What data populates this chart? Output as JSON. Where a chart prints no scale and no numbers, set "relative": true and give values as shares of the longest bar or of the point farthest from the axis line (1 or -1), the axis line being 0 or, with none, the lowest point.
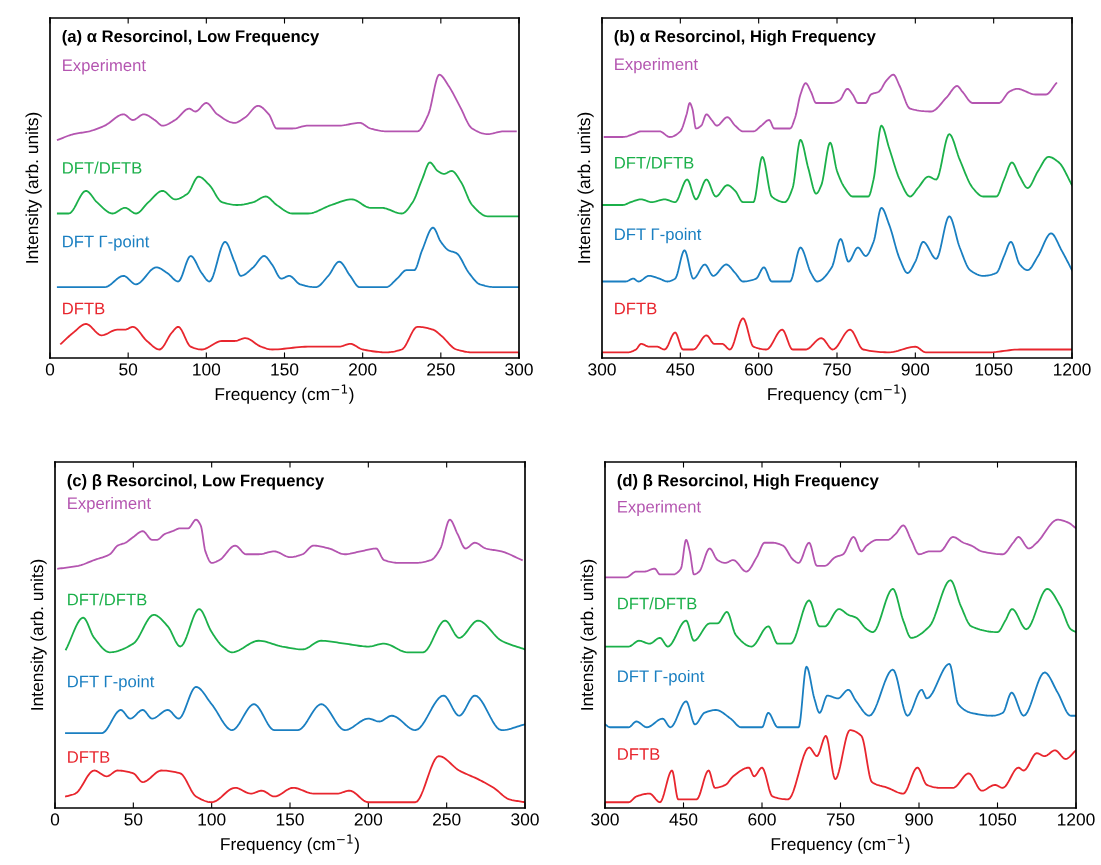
{
  "chart_data": [
    {
      "type": "line",
      "title": "(a) α Resorcinol, Low Frequency",
      "xlabel": "Frequency (cm$^{−1}$)",
      "ylabel": "Intensity (arb. units)",
      "relative": true,
      "xlim": [
        0,
        300
      ],
      "xticks": [
        0,
        50,
        100,
        150,
        200,
        250,
        300
      ],
      "grid": false,
      "legend": false,
      "series": [
        {
          "name": "Experiment",
          "color": "#b455b0",
          "x": [
            5,
            15,
            25,
            35,
            47,
            53,
            60,
            67,
            72,
            80,
            89,
            93,
            100,
            107,
            118,
            125,
            133,
            140,
            145,
            155,
            165,
            185,
            198,
            205,
            215,
            225,
            235,
            242,
            249,
            255,
            262,
            270,
            280,
            290,
            298
          ],
          "values": [
            0.77,
            0.79,
            0.8,
            0.82,
            0.86,
            0.84,
            0.86,
            0.84,
            0.82,
            0.84,
            0.88,
            0.87,
            0.9,
            0.86,
            0.83,
            0.85,
            0.89,
            0.86,
            0.81,
            0.81,
            0.82,
            0.82,
            0.83,
            0.81,
            0.8,
            0.8,
            0.8,
            0.86,
            1,
            0.96,
            0.89,
            0.81,
            0.79,
            0.8,
            0.8
          ]
        },
        {
          "name": "DFT/DFTB",
          "color": "#1bb04a",
          "x": [
            5,
            12,
            23,
            30,
            40,
            48,
            55,
            63,
            72,
            80,
            88,
            95,
            102,
            110,
            120,
            130,
            138,
            145,
            155,
            165,
            180,
            193,
            205,
            212,
            225,
            232,
            238,
            243,
            248,
            252,
            257,
            263,
            270,
            280,
            300
          ],
          "values": [
            0.51,
            0.51,
            0.59,
            0.55,
            0.51,
            0.53,
            0.51,
            0.55,
            0.59,
            0.56,
            0.58,
            0.64,
            0.61,
            0.55,
            0.54,
            0.55,
            0.57,
            0.54,
            0.51,
            0.51,
            0.54,
            0.56,
            0.53,
            0.53,
            0.51,
            0.55,
            0.63,
            0.69,
            0.66,
            0.65,
            0.66,
            0.62,
            0.54,
            0.5,
            0.5
          ]
        },
        {
          "name": "DFT Γ-point",
          "color": "#1a7fc1",
          "x": [
            5,
            35,
            47,
            55,
            68,
            75,
            82,
            90,
            97,
            102,
            112,
            118,
            122,
            130,
            137,
            142,
            148,
            153,
            160,
            170,
            178,
            185,
            192,
            198,
            215,
            222,
            228,
            233,
            238,
            245,
            250,
            255,
            260,
            268,
            275,
            285,
            300
          ],
          "values": [
            0.25,
            0.25,
            0.29,
            0.26,
            0.32,
            0.3,
            0.27,
            0.36,
            0.3,
            0.27,
            0.41,
            0.34,
            0.29,
            0.32,
            0.36,
            0.33,
            0.28,
            0.29,
            0.26,
            0.25,
            0.29,
            0.34,
            0.29,
            0.25,
            0.25,
            0.28,
            0.31,
            0.31,
            0.38,
            0.46,
            0.41,
            0.38,
            0.37,
            0.3,
            0.26,
            0.25,
            0.25
          ]
        },
        {
          "name": "DFTB",
          "color": "#e8262e",
          "x": [
            7,
            15,
            23,
            33,
            43,
            48,
            53,
            62,
            70,
            78,
            82,
            90,
            97,
            110,
            118,
            125,
            135,
            142,
            165,
            185,
            192,
            200,
            215,
            225,
            235,
            245,
            250,
            260,
            270,
            300
          ],
          "values": [
            0.05,
            0.09,
            0.12,
            0.08,
            0.1,
            0.1,
            0.11,
            0.06,
            0.03,
            0.09,
            0.11,
            0.04,
            0.03,
            0.06,
            0.06,
            0.07,
            0.04,
            0.03,
            0.04,
            0.04,
            0.05,
            0.03,
            0.02,
            0.03,
            0.11,
            0.1,
            0.08,
            0.03,
            0.02,
            0.02
          ]
        }
      ]
    },
    {
      "type": "line",
      "title": "(b) α Resorcinol, High Frequency",
      "xlabel": "Frequency (cm$^{−1}$)",
      "ylabel": "Intensity (arb. units)",
      "relative": true,
      "xlim": [
        300,
        1200
      ],
      "xticks": [
        300,
        450,
        600,
        750,
        900,
        1050,
        1200
      ],
      "grid": false,
      "legend": false,
      "series": [
        {
          "name": "Experiment",
          "color": "#b455b0",
          "x": [
            305,
            340,
            360,
            375,
            390,
            410,
            430,
            450,
            462,
            468,
            473,
            480,
            490,
            500,
            510,
            520,
            540,
            555,
            570,
            590,
            605,
            620,
            630,
            660,
            670,
            680,
            690,
            700,
            710,
            740,
            755,
            770,
            780,
            790,
            805,
            815,
            830,
            845,
            858,
            870,
            890,
            930,
            960,
            980,
            990,
            1010,
            1060,
            1080,
            1095,
            1130,
            1150,
            1170
          ],
          "values": [
            0.78,
            0.78,
            0.79,
            0.8,
            0.8,
            0.8,
            0.78,
            0.8,
            0.86,
            0.9,
            0.88,
            0.81,
            0.82,
            0.86,
            0.84,
            0.82,
            0.85,
            0.82,
            0.8,
            0.8,
            0.82,
            0.84,
            0.81,
            0.81,
            0.85,
            0.93,
            0.97,
            0.94,
            0.9,
            0.9,
            0.91,
            0.95,
            0.93,
            0.9,
            0.9,
            0.93,
            0.94,
            0.98,
            1,
            0.96,
            0.88,
            0.87,
            0.92,
            0.96,
            0.94,
            0.9,
            0.9,
            0.94,
            0.95,
            0.93,
            0.93,
            0.97
          ]
        },
        {
          "name": "DFT/DFTB",
          "color": "#1bb04a",
          "x": [
            300,
            340,
            355,
            375,
            395,
            420,
            440,
            463,
            480,
            500,
            518,
            540,
            555,
            570,
            590,
            607,
            625,
            650,
            665,
            680,
            695,
            710,
            720,
            737,
            750,
            765,
            780,
            810,
            820,
            835,
            850,
            870,
            890,
            905,
            925,
            940,
            965,
            985,
            1010,
            1030,
            1055,
            1070,
            1085,
            1100,
            1115,
            1135,
            1155,
            1175,
            1200
          ],
          "values": [
            0.54,
            0.54,
            0.55,
            0.56,
            0.55,
            0.56,
            0.55,
            0.63,
            0.56,
            0.63,
            0.57,
            0.61,
            0.59,
            0.55,
            0.55,
            0.71,
            0.57,
            0.55,
            0.6,
            0.77,
            0.67,
            0.58,
            0.61,
            0.76,
            0.66,
            0.6,
            0.57,
            0.57,
            0.63,
            0.82,
            0.74,
            0.63,
            0.57,
            0.6,
            0.64,
            0.63,
            0.79,
            0.7,
            0.6,
            0.57,
            0.57,
            0.63,
            0.69,
            0.64,
            0.6,
            0.66,
            0.71,
            0.69,
            0.61
          ]
        },
        {
          "name": "DFT Γ-point",
          "color": "#1a7fc1",
          "x": [
            300,
            345,
            360,
            370,
            390,
            410,
            425,
            440,
            458,
            475,
            497,
            513,
            538,
            555,
            570,
            595,
            610,
            625,
            660,
            680,
            700,
            712,
            740,
            757,
            772,
            790,
            805,
            820,
            835,
            850,
            870,
            885,
            900,
            915,
            940,
            965,
            985,
            1005,
            1030,
            1055,
            1070,
            1083,
            1100,
            1115,
            1135,
            1160,
            1180,
            1200
          ],
          "values": [
            0.27,
            0.27,
            0.28,
            0.27,
            0.29,
            0.28,
            0.27,
            0.28,
            0.38,
            0.28,
            0.33,
            0.29,
            0.33,
            0.3,
            0.27,
            0.28,
            0.32,
            0.27,
            0.27,
            0.39,
            0.3,
            0.27,
            0.32,
            0.42,
            0.34,
            0.39,
            0.36,
            0.41,
            0.53,
            0.47,
            0.35,
            0.3,
            0.34,
            0.41,
            0.35,
            0.5,
            0.39,
            0.31,
            0.29,
            0.3,
            0.36,
            0.41,
            0.33,
            0.31,
            0.36,
            0.44,
            0.38,
            0.31
          ]
        },
        {
          "name": "DFTB",
          "color": "#e8262e",
          "x": [
            300,
            350,
            365,
            375,
            390,
            405,
            420,
            440,
            455,
            475,
            500,
            515,
            530,
            545,
            570,
            590,
            615,
            645,
            665,
            690,
            720,
            742,
            775,
            800,
            850,
            900,
            920,
            1000,
            1040,
            1100,
            1200
          ],
          "values": [
            0.02,
            0.02,
            0.03,
            0.05,
            0.04,
            0.04,
            0.03,
            0.09,
            0.03,
            0.03,
            0.08,
            0.05,
            0.05,
            0.03,
            0.14,
            0.04,
            0.03,
            0.1,
            0.03,
            0.03,
            0.07,
            0.03,
            0.1,
            0.03,
            0.02,
            0.04,
            0.02,
            0.02,
            0.02,
            0.03,
            0.03
          ]
        }
      ]
    },
    {
      "type": "line",
      "title": "(c) β Resorcinol, Low Frequency",
      "xlabel": "Frequency (cm$^{−1}$)",
      "ylabel": "Intensity (arb. units)",
      "relative": true,
      "xlim": [
        0,
        300
      ],
      "xticks": [
        0,
        50,
        100,
        150,
        200,
        250,
        300
      ],
      "grid": false,
      "legend": false,
      "series": [
        {
          "name": "Experiment",
          "color": "#b455b0",
          "x": [
            2,
            15,
            25,
            35,
            40,
            45,
            50,
            56,
            62,
            65,
            70,
            75,
            80,
            85,
            90,
            93,
            96,
            100,
            105,
            115,
            122,
            130,
            140,
            150,
            158,
            165,
            175,
            185,
            195,
            205,
            210,
            220,
            230,
            240,
            246,
            252,
            257,
            262,
            268,
            275,
            285,
            298
          ],
          "values": [
            0.83,
            0.84,
            0.86,
            0.88,
            0.91,
            0.92,
            0.94,
            0.96,
            0.93,
            0.93,
            0.95,
            0.96,
            0.97,
            0.97,
            1,
            0.98,
            0.89,
            0.85,
            0.86,
            0.91,
            0.88,
            0.88,
            0.89,
            0.87,
            0.88,
            0.91,
            0.9,
            0.88,
            0.89,
            0.9,
            0.86,
            0.85,
            0.85,
            0.86,
            0.9,
            1,
            0.95,
            0.9,
            0.92,
            0.9,
            0.89,
            0.86
          ]
        },
        {
          "name": "DFT/DFTB",
          "color": "#1bb04a",
          "x": [
            7,
            18,
            25,
            35,
            50,
            63,
            72,
            80,
            92,
            100,
            107,
            113,
            130,
            145,
            158,
            170,
            185,
            200,
            210,
            225,
            235,
            249,
            258,
            270,
            285,
            300
          ],
          "values": [
            0.55,
            0.66,
            0.59,
            0.54,
            0.57,
            0.67,
            0.63,
            0.56,
            0.69,
            0.61,
            0.56,
            0.54,
            0.58,
            0.56,
            0.55,
            0.58,
            0.57,
            0.56,
            0.57,
            0.54,
            0.54,
            0.65,
            0.59,
            0.65,
            0.58,
            0.55
          ]
        },
        {
          "name": "DFT Γ-point",
          "color": "#1a7fc1",
          "x": [
            7,
            30,
            42,
            48,
            56,
            62,
            72,
            79,
            90,
            100,
            113,
            127,
            140,
            155,
            170,
            185,
            200,
            207,
            215,
            230,
            248,
            258,
            268,
            285,
            300
          ],
          "values": [
            0.26,
            0.26,
            0.34,
            0.31,
            0.34,
            0.31,
            0.34,
            0.31,
            0.42,
            0.36,
            0.27,
            0.36,
            0.27,
            0.27,
            0.36,
            0.27,
            0.31,
            0.3,
            0.32,
            0.27,
            0.39,
            0.32,
            0.39,
            0.27,
            0.29
          ]
        },
        {
          "name": "DFTB",
          "color": "#e8262e",
          "x": [
            7,
            13,
            25,
            33,
            40,
            50,
            56,
            68,
            80,
            90,
            100,
            115,
            125,
            132,
            140,
            152,
            165,
            180,
            188,
            200,
            230,
            245,
            258,
            270,
            280,
            290,
            300
          ],
          "values": [
            0.04,
            0.05,
            0.13,
            0.11,
            0.13,
            0.12,
            0.09,
            0.13,
            0.12,
            0.04,
            0.02,
            0.07,
            0.05,
            0.06,
            0.04,
            0.07,
            0.05,
            0.05,
            0.06,
            0.02,
            0.02,
            0.18,
            0.13,
            0.1,
            0.07,
            0.03,
            0.02
          ]
        }
      ]
    },
    {
      "type": "line",
      "title": "(d) β Resorcinol, High Frequency",
      "xlabel": "Frequency (cm$^{−1}$)",
      "ylabel": "Intensity (arb. units)",
      "relative": true,
      "xlim": [
        300,
        1200
      ],
      "xticks": [
        300,
        450,
        600,
        750,
        900,
        1050,
        1200
      ],
      "grid": false,
      "legend": false,
      "series": [
        {
          "name": "Experiment",
          "color": "#b455b0",
          "x": [
            300,
            340,
            360,
            375,
            395,
            405,
            430,
            445,
            455,
            462,
            470,
            480,
            500,
            515,
            530,
            545,
            570,
            590,
            605,
            620,
            640,
            660,
            670,
            690,
            705,
            720,
            740,
            755,
            775,
            790,
            800,
            820,
            840,
            855,
            870,
            885,
            900,
            920,
            940,
            965,
            985,
            1000,
            1020,
            1060,
            1080,
            1090,
            1110,
            1125,
            1165,
            1185,
            1200
          ],
          "values": [
            0.8,
            0.8,
            0.82,
            0.82,
            0.83,
            0.81,
            0.81,
            0.83,
            0.93,
            0.89,
            0.81,
            0.82,
            0.9,
            0.86,
            0.85,
            0.86,
            0.82,
            0.87,
            0.92,
            0.92,
            0.91,
            0.86,
            0.85,
            0.92,
            0.84,
            0.84,
            0.87,
            0.88,
            0.94,
            0.89,
            0.91,
            0.93,
            0.93,
            0.95,
            0.98,
            0.93,
            0.88,
            0.89,
            0.89,
            0.94,
            0.92,
            0.91,
            0.89,
            0.88,
            0.92,
            0.94,
            0.9,
            0.92,
            1,
            0.99,
            0.97
          ]
        },
        {
          "name": "DFT/DFTB",
          "color": "#1bb04a",
          "x": [
            300,
            345,
            365,
            385,
            405,
            420,
            455,
            470,
            500,
            515,
            533,
            550,
            580,
            612,
            630,
            655,
            690,
            710,
            720,
            747,
            765,
            780,
            800,
            812,
            850,
            870,
            885,
            920,
            960,
            980,
            1000,
            1050,
            1065,
            1078,
            1105,
            1145,
            1170,
            1190,
            1200
          ],
          "values": [
            0.56,
            0.56,
            0.58,
            0.57,
            0.59,
            0.56,
            0.65,
            0.58,
            0.64,
            0.64,
            0.68,
            0.6,
            0.56,
            0.63,
            0.57,
            0.57,
            0.72,
            0.63,
            0.63,
            0.69,
            0.67,
            0.66,
            0.62,
            0.61,
            0.76,
            0.65,
            0.59,
            0.63,
            0.79,
            0.7,
            0.63,
            0.61,
            0.65,
            0.69,
            0.62,
            0.76,
            0.7,
            0.62,
            0.61
          ]
        },
        {
          "name": "DFT Γ-point",
          "color": "#1a7fc1",
          "x": [
            300,
            310,
            345,
            360,
            380,
            410,
            425,
            455,
            472,
            490,
            512,
            540,
            560,
            600,
            612,
            630,
            670,
            685,
            700,
            710,
            725,
            745,
            765,
            780,
            805,
            850,
            878,
            905,
            915,
            958,
            975,
            1000,
            1040,
            1060,
            1077,
            1100,
            1140,
            1165,
            1190,
            1200
          ],
          "values": [
            0.29,
            0.28,
            0.28,
            0.3,
            0.28,
            0.31,
            0.28,
            0.37,
            0.29,
            0.33,
            0.34,
            0.31,
            0.28,
            0.28,
            0.33,
            0.28,
            0.28,
            0.49,
            0.38,
            0.33,
            0.39,
            0.38,
            0.41,
            0.37,
            0.32,
            0.48,
            0.32,
            0.41,
            0.38,
            0.5,
            0.36,
            0.33,
            0.32,
            0.33,
            0.4,
            0.32,
            0.47,
            0.4,
            0.32,
            0.32
          ]
        },
        {
          "name": "DFTB",
          "color": "#e8262e",
          "x": [
            300,
            345,
            360,
            385,
            405,
            428,
            440,
            475,
            498,
            510,
            530,
            545,
            575,
            585,
            600,
            620,
            650,
            690,
            705,
            722,
            740,
            768,
            790,
            810,
            840,
            870,
            897,
            915,
            940,
            965,
            995,
            1020,
            1045,
            1060,
            1090,
            1100,
            1125,
            1140,
            1160,
            1180,
            1200
          ],
          "values": [
            0.02,
            0.02,
            0.04,
            0.05,
            0.02,
            0.13,
            0.03,
            0.03,
            0.13,
            0.07,
            0.08,
            0.11,
            0.14,
            0.11,
            0.14,
            0.04,
            0.03,
            0.21,
            0.18,
            0.25,
            0.1,
            0.27,
            0.25,
            0.09,
            0.07,
            0.05,
            0.14,
            0.08,
            0.07,
            0.07,
            0.12,
            0.06,
            0.08,
            0.07,
            0.14,
            0.13,
            0.19,
            0.18,
            0.2,
            0.17,
            0.2
          ]
        }
      ]
    }
  ]
}
